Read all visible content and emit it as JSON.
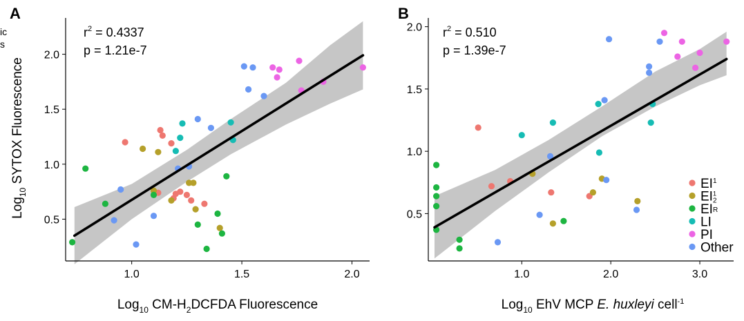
{
  "colors": {
    "EI1": "#ee7770",
    "EI2": "#b5a02a",
    "EIR": "#1db541",
    "LI": "#16bcb4",
    "PI": "#ec64e4",
    "Other": "#6a98f4",
    "fit_line": "#000000",
    "ci_band": "#b3b3b3"
  },
  "crop_fragment": {
    "line1": "ic",
    "line2": "s"
  },
  "chart_data": [
    {
      "type": "scatter",
      "panel_label": "A",
      "stats": {
        "r2_label": "r",
        "r2_sup": "2",
        "r2_value": " = 0.4337",
        "p": "p = 1.21e-7"
      },
      "xlabel": {
        "pre": "Log",
        "sub": "10",
        "mid": " CM-H",
        "sub2": "2",
        "post": "DCFDA Fluorescence"
      },
      "ylabel": {
        "pre": "Log",
        "sub": "10",
        "post": " SYTOX Fluorescence"
      },
      "xlim": [
        0.7,
        2.08
      ],
      "ylim": [
        0.12,
        2.33
      ],
      "xticks": [
        1.0,
        1.5,
        2.0
      ],
      "xtick_labels": [
        "1.0",
        "1.5",
        "2.0"
      ],
      "yticks": [
        0.5,
        1.0,
        1.5,
        2.0
      ],
      "ytick_labels": [
        "0.5",
        "1.0",
        "1.5",
        "2.0"
      ],
      "fit": {
        "x0": 0.74,
        "y0": 0.35,
        "x1": 2.05,
        "y1": 1.99
      },
      "ci": {
        "x": [
          0.74,
          1.0,
          1.25,
          1.45,
          1.7,
          1.9,
          2.05
        ],
        "lower": [
          0.09,
          0.5,
          0.84,
          1.09,
          1.36,
          1.55,
          1.68
        ],
        "upper": [
          0.61,
          0.82,
          1.13,
          1.41,
          1.74,
          2.08,
          2.3
        ]
      },
      "series": [
        {
          "key": "EI1",
          "points": [
            [
              0.97,
              1.2
            ],
            [
              1.13,
              1.31
            ],
            [
              1.14,
              1.26
            ],
            [
              1.18,
              1.19
            ],
            [
              1.12,
              0.74
            ],
            [
              1.19,
              0.69
            ],
            [
              1.2,
              0.73
            ],
            [
              1.22,
              0.75
            ],
            [
              1.25,
              0.72
            ],
            [
              1.27,
              0.67
            ],
            [
              1.33,
              0.64
            ]
          ]
        },
        {
          "key": "EI2",
          "points": [
            [
              1.05,
              1.14
            ],
            [
              1.12,
              1.11
            ],
            [
              1.1,
              0.76
            ],
            [
              1.18,
              0.67
            ],
            [
              1.26,
              0.83
            ],
            [
              1.28,
              0.83
            ],
            [
              1.29,
              0.59
            ],
            [
              1.4,
              0.42
            ]
          ]
        },
        {
          "key": "EIR",
          "points": [
            [
              0.73,
              0.29
            ],
            [
              0.79,
              0.96
            ],
            [
              0.88,
              0.64
            ],
            [
              1.1,
              0.72
            ],
            [
              1.3,
              0.45
            ],
            [
              1.34,
              0.23
            ],
            [
              1.39,
              0.55
            ],
            [
              1.41,
              0.37
            ],
            [
              1.43,
              0.89
            ]
          ]
        },
        {
          "key": "LI",
          "points": [
            [
              1.2,
              1.12
            ],
            [
              1.22,
              1.24
            ],
            [
              1.23,
              1.37
            ],
            [
              1.45,
              1.38
            ],
            [
              1.46,
              1.22
            ]
          ]
        },
        {
          "key": "PI",
          "points": [
            [
              1.64,
              1.88
            ],
            [
              1.66,
              1.79
            ],
            [
              1.67,
              1.86
            ],
            [
              1.76,
              1.94
            ],
            [
              1.77,
              1.67
            ],
            [
              1.87,
              1.75
            ],
            [
              2.05,
              1.88
            ]
          ]
        },
        {
          "key": "Other",
          "points": [
            [
              0.95,
              0.77
            ],
            [
              0.92,
              0.49
            ],
            [
              1.02,
              0.27
            ],
            [
              1.1,
              0.53
            ],
            [
              1.21,
              0.96
            ],
            [
              1.26,
              0.98
            ],
            [
              1.3,
              1.41
            ],
            [
              1.36,
              1.33
            ],
            [
              1.51,
              1.89
            ],
            [
              1.53,
              1.68
            ],
            [
              1.55,
              1.88
            ],
            [
              1.6,
              1.62
            ]
          ]
        }
      ]
    },
    {
      "type": "scatter",
      "panel_label": "B",
      "stats": {
        "r2_label": "r",
        "r2_sup": "2",
        "r2_value": " = 0.510",
        "p": "p = 1.39e-7"
      },
      "xlabel": {
        "pre": "Log",
        "sub": "10",
        "mid": " EhV MCP ",
        "italic": "E. huxleyi",
        "post": " cell",
        "sup": "-1"
      },
      "ylabel": null,
      "xlim": [
        -0.05,
        3.38
      ],
      "ylim": [
        0.12,
        2.07
      ],
      "xticks": [
        1.0,
        2.0,
        3.0
      ],
      "xtick_labels": [
        "1.0",
        "2.0",
        "3.0"
      ],
      "yticks": [
        0.5,
        1.0,
        1.5,
        2.0
      ],
      "ytick_labels": [
        "0.5",
        "1.0",
        "1.5",
        "2.0"
      ],
      "fit": {
        "x0": 0.02,
        "y0": 0.39,
        "x1": 3.3,
        "y1": 1.74
      },
      "ci": {
        "x": [
          0.02,
          0.7,
          1.3,
          1.9,
          2.5,
          3.0,
          3.3
        ],
        "lower": [
          0.14,
          0.52,
          0.83,
          1.12,
          1.36,
          1.53,
          1.61
        ],
        "upper": [
          0.64,
          0.85,
          1.09,
          1.36,
          1.64,
          1.82,
          1.96
        ]
      },
      "series": [
        {
          "key": "EI1",
          "points": [
            [
              0.51,
              1.19
            ],
            [
              0.66,
              0.72
            ],
            [
              0.87,
              0.76
            ],
            [
              1.33,
              0.67
            ],
            [
              1.76,
              0.64
            ]
          ]
        },
        {
          "key": "EI2",
          "points": [
            [
              1.12,
              0.82
            ],
            [
              1.35,
              0.42
            ],
            [
              1.8,
              0.67
            ],
            [
              1.9,
              0.78
            ],
            [
              2.3,
              0.6
            ]
          ]
        },
        {
          "key": "EIR",
          "points": [
            [
              0.04,
              0.89
            ],
            [
              0.04,
              0.71
            ],
            [
              0.04,
              0.64
            ],
            [
              0.04,
              0.56
            ],
            [
              0.04,
              0.37
            ],
            [
              0.3,
              0.29
            ],
            [
              0.3,
              0.22
            ],
            [
              1.47,
              0.44
            ]
          ]
        },
        {
          "key": "LI",
          "points": [
            [
              1.0,
              1.13
            ],
            [
              1.35,
              1.23
            ],
            [
              1.86,
              1.38
            ],
            [
              1.87,
              0.99
            ],
            [
              2.45,
              1.23
            ],
            [
              2.47,
              1.38
            ]
          ]
        },
        {
          "key": "PI",
          "points": [
            [
              2.6,
              1.95
            ],
            [
              2.75,
              1.76
            ],
            [
              2.8,
              1.88
            ],
            [
              2.95,
              1.67
            ],
            [
              3.0,
              1.79
            ],
            [
              3.3,
              1.88
            ]
          ]
        },
        {
          "key": "Other",
          "points": [
            [
              0.73,
              0.27
            ],
            [
              1.2,
              0.49
            ],
            [
              1.32,
              0.96
            ],
            [
              1.93,
              1.41
            ],
            [
              1.95,
              0.77
            ],
            [
              1.98,
              1.9
            ],
            [
              2.29,
              0.53
            ],
            [
              2.43,
              1.68
            ],
            [
              2.43,
              1.63
            ],
            [
              2.55,
              1.88
            ]
          ]
        }
      ]
    }
  ],
  "legend": {
    "placement": "bottom-right of panel B",
    "items": [
      {
        "key": "EI1",
        "base": "EI",
        "sub": "1"
      },
      {
        "key": "EI2",
        "base": "EI",
        "sub": "2",
        "note": "subscript 2 with superscript 1"
      },
      {
        "key": "EIR",
        "base": "EI",
        "sub": "R"
      },
      {
        "key": "LI",
        "base": "LI",
        "sub": ""
      },
      {
        "key": "PI",
        "base": "PI",
        "sub": ""
      },
      {
        "key": "Other",
        "base": "Other",
        "sub": ""
      }
    ]
  }
}
